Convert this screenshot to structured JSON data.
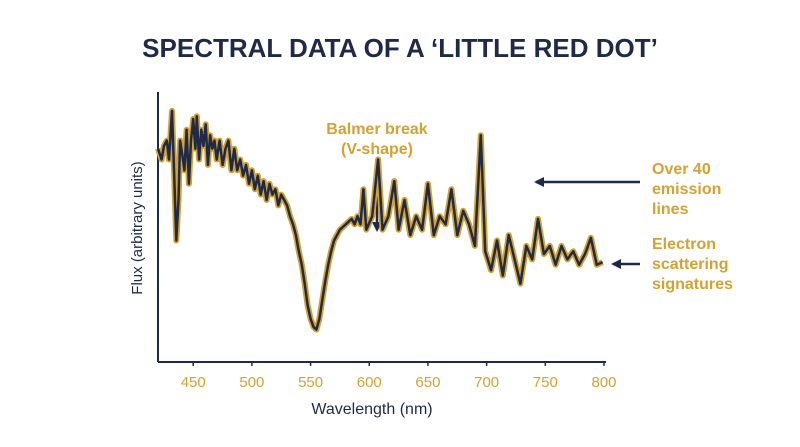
{
  "chart_data": {
    "type": "line",
    "title": "SPECTRAL DATA OF A ‘LITTLE RED DOT’",
    "x_label": "Wavelength (nm)",
    "y_label": "Flux (arbitrary units)",
    "xlim": [
      420,
      800
    ],
    "xticks": [
      450,
      500,
      550,
      600,
      650,
      700,
      750,
      800
    ],
    "ylim": [
      0,
      100
    ],
    "line_color": "#1e2a47",
    "outline_color": "#d4a233",
    "x": [
      420,
      423.1,
      425,
      427.5,
      429.4,
      431.9,
      433.8,
      435.6,
      437.5,
      438.8,
      440.6,
      442.5,
      444.4,
      446.3,
      448.1,
      450,
      451.9,
      453.1,
      455,
      456.9,
      458.8,
      460.6,
      462.5,
      464.4,
      466.3,
      468.1,
      470,
      472.5,
      475,
      477.5,
      480,
      482.5,
      485,
      487.5,
      490,
      492.5,
      495,
      497.5,
      500,
      502.5,
      505,
      507.5,
      510,
      512.5,
      515,
      517.5,
      520,
      522.5,
      525,
      527.5,
      530,
      532.5,
      535,
      537.5,
      540,
      542.5,
      545,
      547.5,
      550,
      552.5,
      555,
      557.5,
      560,
      562.5,
      565,
      567.5,
      570,
      572.5,
      575,
      577.5,
      580,
      582.5,
      585,
      587.5,
      590,
      592.5,
      595,
      597.5,
      602.5,
      607.5,
      611.3,
      616.3,
      621.3,
      625,
      630,
      635,
      640,
      645,
      650,
      655,
      660,
      665,
      670,
      675,
      680,
      685,
      690,
      695,
      698.8,
      703.8,
      708.8,
      713.8,
      718.8,
      723.8,
      728.8,
      733.8,
      738.8,
      743.8,
      748.8,
      753.8,
      758.8,
      763.8,
      768.8,
      773.8,
      778.8,
      783.8,
      788.8,
      793.8,
      798.8
    ],
    "values": [
      79,
      75,
      80,
      82,
      75,
      93,
      69,
      45,
      60,
      82,
      77,
      71,
      86,
      66,
      82,
      90,
      79,
      91,
      75,
      86,
      80,
      88,
      73,
      84,
      79,
      82,
      75,
      82,
      73,
      79,
      82,
      71,
      79,
      71,
      75,
      69,
      73,
      66,
      71,
      64,
      69,
      62,
      67,
      60,
      66,
      62,
      64,
      58,
      62,
      60,
      58,
      54,
      51,
      47,
      41,
      36,
      29,
      21,
      16,
      13,
      12,
      16,
      23,
      30,
      36,
      41,
      45,
      47,
      49,
      50,
      51,
      52,
      53,
      51,
      54,
      51,
      64,
      49,
      54,
      75,
      49,
      54,
      67,
      49,
      60,
      47,
      54,
      49,
      66,
      47,
      54,
      51,
      64,
      47,
      56,
      51,
      43,
      84,
      41,
      34,
      45,
      32,
      47,
      38,
      29,
      43,
      38,
      53,
      40,
      43,
      36,
      43,
      38,
      41,
      36,
      40,
      46,
      36,
      37
    ],
    "annotations": [
      {
        "lines": [
          "Balmer break",
          "(V-shape)"
        ]
      },
      {
        "lines": [
          "Over 40",
          "emission",
          "lines"
        ]
      },
      {
        "lines": [
          "Electron",
          "scattering",
          "signatures"
        ]
      }
    ]
  }
}
